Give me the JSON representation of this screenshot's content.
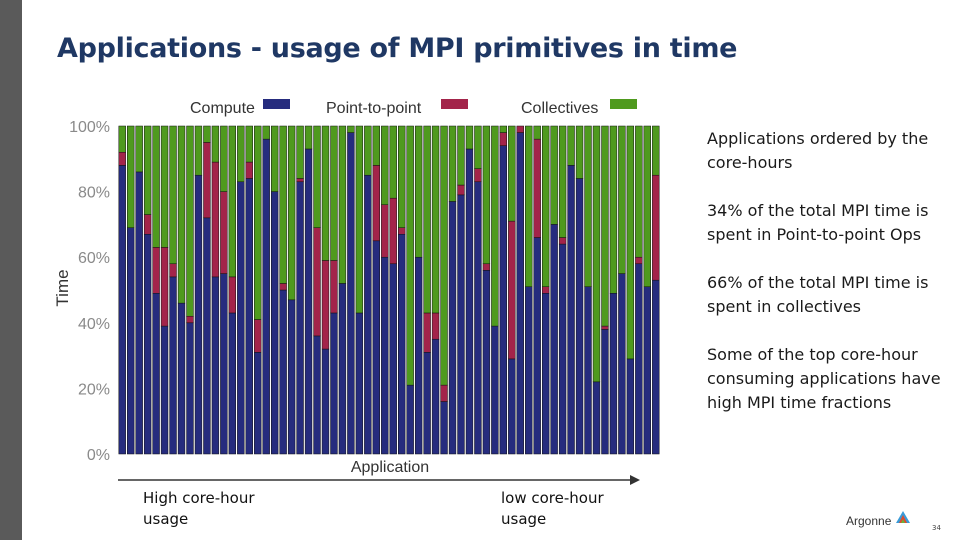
{
  "slide": {
    "title": "Applications - usage of MPI primitives in time",
    "page_number": "34"
  },
  "notes": [
    "Applications ordered by the core-hours",
    "34% of the total MPI time is spent in Point-to-point Ops",
    "66% of the total MPI time is spent in collectives",
    "Some of the top core-hour consuming applications have high MPI time fractions"
  ],
  "arrow_labels": {
    "start": "High core-hour usage",
    "end": "low core-hour usage"
  },
  "logo": {
    "text": "Argonne",
    "icon": "argonne-triangle-logo-icon"
  },
  "chart_data": {
    "type": "bar",
    "stacked": true,
    "xlabel": "Application",
    "ylabel": "Time",
    "ylim": [
      0,
      100
    ],
    "yticks": [
      "0%",
      "20%",
      "40%",
      "60%",
      "80%",
      "100%"
    ],
    "legend_position": "top",
    "colors": {
      "Compute": "#262c7e",
      "Point-to-point": "#a3244a",
      "Collectives": "#4f9a1e"
    },
    "series": [
      {
        "name": "Compute",
        "values": [
          88,
          69,
          86,
          67,
          49,
          39,
          54,
          46,
          40,
          85,
          72,
          54,
          55,
          43,
          83,
          84,
          31,
          96,
          80,
          50,
          47,
          83,
          93,
          36,
          32,
          43,
          52,
          98,
          43,
          85,
          65,
          60,
          58,
          67,
          21,
          60,
          31,
          35,
          16,
          77,
          79,
          93,
          83,
          56,
          39,
          94,
          29,
          98,
          51,
          66,
          49,
          70,
          64,
          88,
          84,
          51,
          22,
          38,
          49,
          55,
          29,
          58,
          51,
          53
        ]
      },
      {
        "name": "Point-to-point",
        "values": [
          4,
          0,
          0,
          6,
          14,
          24,
          4,
          0,
          2,
          0,
          23,
          35,
          25,
          11,
          0,
          5,
          10,
          0,
          0,
          2,
          0,
          1,
          0,
          33,
          27,
          16,
          0,
          0,
          0,
          0,
          23,
          16,
          20,
          2,
          0,
          0,
          12,
          8,
          5,
          0,
          3,
          0,
          4,
          2,
          0,
          4,
          42,
          2,
          0,
          30,
          2,
          0,
          2,
          0,
          0,
          0,
          0,
          1,
          0,
          0,
          0,
          2,
          0,
          32
        ]
      },
      {
        "name": "Collectives",
        "values": [
          8,
          31,
          14,
          27,
          37,
          37,
          42,
          54,
          58,
          15,
          5,
          11,
          20,
          46,
          17,
          11,
          59,
          4,
          20,
          48,
          53,
          16,
          7,
          31,
          41,
          41,
          48,
          2,
          57,
          15,
          12,
          24,
          22,
          31,
          79,
          40,
          57,
          57,
          79,
          23,
          18,
          7,
          13,
          42,
          61,
          2,
          29,
          0,
          49,
          4,
          49,
          30,
          34,
          12,
          16,
          49,
          78,
          61,
          51,
          45,
          71,
          40,
          49,
          15
        ]
      }
    ]
  }
}
